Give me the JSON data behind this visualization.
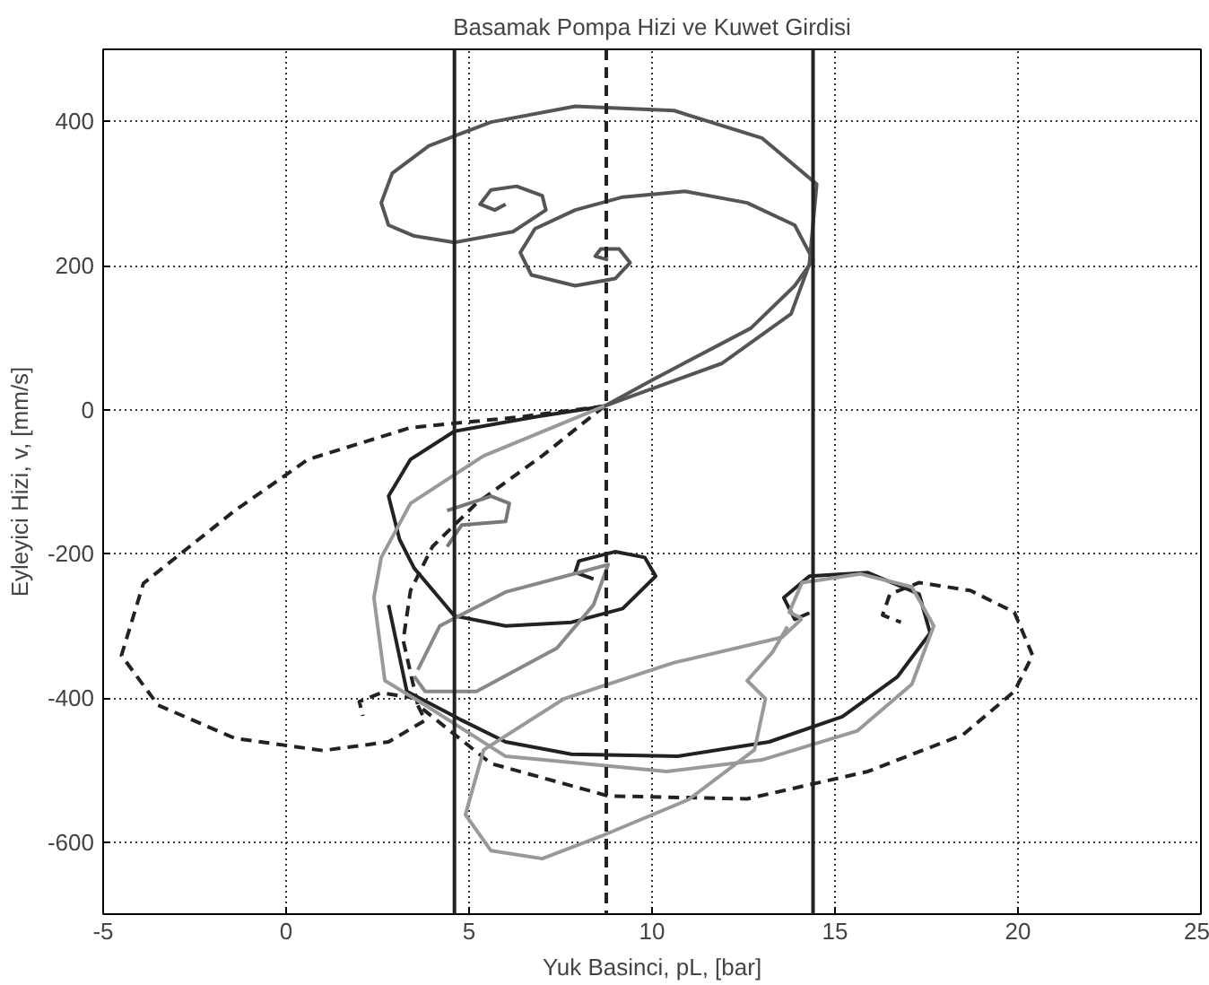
{
  "chart_data": {
    "type": "line",
    "title": "Basamak Pompa Hizi ve Kuwet Girdisi",
    "xlabel": "Yuk Basinci, pL, [bar]",
    "ylabel": "Eyleyici Hizi, v, [mm/s]",
    "xlim": [
      -5,
      25
    ],
    "ylim": [
      -700,
      500
    ],
    "xticks": [
      -5,
      0,
      5,
      10,
      15,
      20,
      25
    ],
    "yticks": [
      -600,
      -400,
      -200,
      0,
      200,
      400
    ],
    "grid": true,
    "line_style": "solid",
    "marker": "none",
    "series": [
      {
        "color": "#555555",
        "x": [
          8.7,
          11.9,
          13.8,
          14.3,
          14.5,
          13.0,
          10.6,
          7.9,
          5.6,
          3.9,
          2.9,
          2.6,
          2.8,
          3.5,
          4.6,
          6.2,
          7.1,
          7.0,
          6.3,
          5.6,
          5.3,
          5.7,
          6.0
        ],
        "values": [
          5,
          64,
          133,
          202,
          313,
          377,
          415,
          421,
          399,
          366,
          328,
          287,
          256,
          241,
          232,
          247,
          277,
          297,
          310,
          305,
          285,
          277,
          285
        ]
      },
      {
        "color": "#555555",
        "x": [
          8.7,
          10.0,
          12.7,
          13.9,
          14.4,
          13.9,
          12.6,
          10.9,
          9.2,
          7.9,
          6.8,
          6.4,
          6.7,
          7.9,
          9.0,
          9.4,
          9.1,
          8.6,
          8.45,
          8.8
        ],
        "values": [
          5,
          41,
          113,
          172,
          208,
          256,
          287,
          303,
          295,
          277,
          251,
          218,
          187,
          172,
          182,
          204,
          223,
          223,
          213,
          208
        ]
      },
      {
        "color": "#222222",
        "line_style": "dashed",
        "x": [
          8.7,
          6.4,
          3.4,
          0.6,
          -1.4,
          -3.9,
          -4.5,
          -3.5,
          -1.4,
          1.0,
          2.8,
          3.8,
          3.5,
          2.6,
          2.0,
          2.1
        ],
        "values": [
          5,
          -10,
          -25,
          -69,
          -140,
          -241,
          -341,
          -410,
          -456,
          -473,
          -461,
          -431,
          -400,
          -393,
          -405,
          -425
        ]
      },
      {
        "color": "#222222",
        "line_style": "dashed",
        "x": [
          8.7,
          7.0,
          5.2,
          4.0,
          3.4,
          3.2,
          3.6,
          5.6,
          8.8,
          12.6,
          15.9,
          18.5,
          19.9,
          20.4,
          19.9,
          18.7,
          17.3,
          16.5,
          16.3,
          16.8
        ],
        "values": [
          5,
          -64,
          -130,
          -190,
          -251,
          -320,
          -410,
          -491,
          -536,
          -540,
          -502,
          -451,
          -391,
          -341,
          -281,
          -251,
          -240,
          -256,
          -285,
          -295
        ]
      },
      {
        "color": "#222222",
        "x": [
          8.7,
          6.8,
          4.6,
          3.4,
          2.8,
          3.1,
          3.5,
          4.6,
          6.0,
          7.8,
          9.2,
          10.1,
          9.8,
          9.0,
          8.0,
          7.9,
          8.4
        ],
        "values": [
          5,
          -10,
          -30,
          -69,
          -120,
          -180,
          -220,
          -286,
          -300,
          -295,
          -276,
          -231,
          -205,
          -197,
          -210,
          -226,
          -235
        ]
      },
      {
        "color": "#222222",
        "x": [
          2.8,
          3.3,
          4.8,
          6.0,
          7.8,
          10.7,
          13.2,
          15.2,
          16.7,
          17.6,
          17.3,
          15.9,
          14.3,
          13.6,
          13.9,
          14.3
        ],
        "values": [
          -271,
          -391,
          -431,
          -461,
          -478,
          -481,
          -461,
          -426,
          -371,
          -310,
          -256,
          -226,
          -231,
          -261,
          -291,
          -282
        ]
      },
      {
        "color": "#999999",
        "x": [
          8.7,
          5.4,
          3.4,
          2.6,
          2.4,
          2.7,
          3.8,
          6.0,
          10.4,
          13.0,
          15.6,
          17.1,
          17.7,
          17.1,
          15.7,
          14.1,
          13.75,
          14.1
        ],
        "values": [
          5,
          -64,
          -130,
          -205,
          -261,
          -376,
          -410,
          -481,
          -502,
          -486,
          -446,
          -381,
          -300,
          -246,
          -228,
          -240,
          -281,
          -290
        ]
      },
      {
        "color": "#999999",
        "x": [
          14.1,
          13.55,
          10.6,
          7.6,
          5.4,
          4.9,
          5.6,
          7.0,
          8.6,
          11.0,
          12.8,
          13.1,
          12.6,
          13.3,
          13.7
        ],
        "values": [
          -290,
          -316,
          -351,
          -401,
          -472,
          -562,
          -612,
          -623,
          -592,
          -541,
          -472,
          -401,
          -376,
          -336,
          -301
        ]
      },
      {
        "color": "#888888",
        "x": [
          3.6,
          4.2,
          6.0,
          8.0,
          8.8,
          8.4,
          7.4,
          5.2,
          3.8,
          3.5
        ],
        "values": [
          -361,
          -300,
          -253,
          -226,
          -215,
          -271,
          -331,
          -391,
          -391,
          -370
        ]
      },
      {
        "color": "#777777",
        "x": [
          4.4,
          5.6,
          6.1,
          6.0,
          4.8,
          4.4
        ],
        "values": [
          -140,
          -120,
          -130,
          -155,
          -160,
          -190
        ]
      }
    ],
    "ref_lines": [
      {
        "axis": "x",
        "value": 4.6,
        "color": "#222222",
        "line_style": "solid"
      },
      {
        "axis": "x",
        "value": 8.75,
        "color": "#222222",
        "line_style": "dashed"
      },
      {
        "axis": "x",
        "value": 14.4,
        "color": "#222222",
        "line_style": "solid"
      }
    ]
  }
}
